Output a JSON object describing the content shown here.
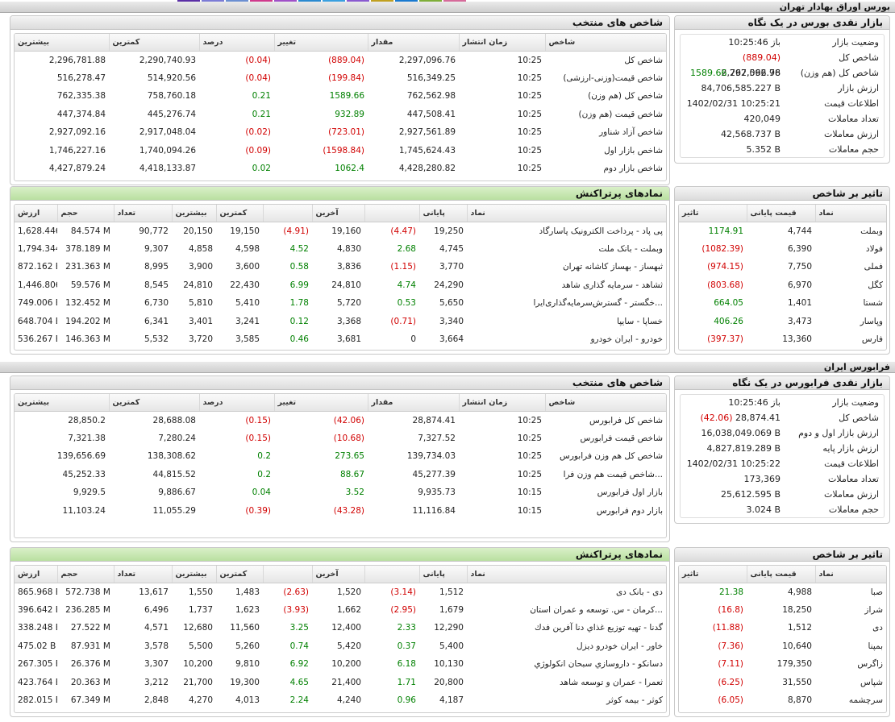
{
  "colors": {
    "negative": "#d10000",
    "positive": "#008000",
    "header_green": "#c9e8b2"
  },
  "top_strip": [
    "#5b2fa6",
    "#7b7bd6",
    "#6b8fd2",
    "#d03a8c",
    "#a050c8",
    "#2a8ad0",
    "#3aa0e0",
    "#8a5ad0",
    "#c0a020",
    "#1a7ad0",
    "#7fae3a",
    "#d66a9a"
  ],
  "tse": {
    "section_title": "بورس اوراق بهادار تهران",
    "indices": {
      "title": "شاخص های منتخب",
      "headers": [
        "شاخص",
        "زمان انتشار",
        "مقدار",
        "تغییر",
        "درصد",
        "کمترین",
        "بیشترین"
      ],
      "rows": [
        {
          "name": "شاخص کل",
          "time": "10:25",
          "value": "2,297,096.76",
          "change": "(889.04)",
          "pct": "(0.04)",
          "low": "2,290,740.93",
          "high": "2,296,781.88",
          "dir": "neg"
        },
        {
          "name": "شاخص قیمت(وزنی-ارزشی)",
          "time": "10:25",
          "value": "516,349.25",
          "change": "(199.84)",
          "pct": "(0.04)",
          "low": "514,920.56",
          "high": "516,278.47",
          "dir": "neg"
        },
        {
          "name": "شاخص کل (هم وزن)",
          "time": "10:25",
          "value": "762,562.98",
          "change": "1589.66",
          "pct": "0.21",
          "low": "758,760.18",
          "high": "762,335.38",
          "dir": "pos"
        },
        {
          "name": "شاخص قیمت (هم وزن)",
          "time": "10:25",
          "value": "447,508.41",
          "change": "932.89",
          "pct": "0.21",
          "low": "445,276.74",
          "high": "447,374.84",
          "dir": "pos"
        },
        {
          "name": "شاخص آزاد شناور",
          "time": "10:25",
          "value": "2,927,561.89",
          "change": "(723.01)",
          "pct": "(0.02)",
          "low": "2,917,048.04",
          "high": "2,927,092.16",
          "dir": "neg"
        },
        {
          "name": "شاخص بازار اول",
          "time": "10:25",
          "value": "1,745,624.43",
          "change": "(1598.84)",
          "pct": "(0.09)",
          "low": "1,740,094.26",
          "high": "1,746,227.16",
          "dir": "neg"
        },
        {
          "name": "شاخص بازار دوم",
          "time": "10:25",
          "value": "4,428,280.82",
          "change": "1062.4",
          "pct": "0.02",
          "low": "4,418,133.87",
          "high": "4,427,879.24",
          "dir": "pos"
        }
      ]
    },
    "glance": {
      "title": "بازار نقدی بورس در یک نگاه",
      "rows": [
        {
          "label": "وضعیت بازار",
          "value": "باز 10:25:46",
          "extra": "",
          "dir": ""
        },
        {
          "label": "شاخص کل",
          "value": "2,297,096.76",
          "extra": "(889.04)",
          "dir": "neg"
        },
        {
          "label": "شاخص کل (هم وزن)",
          "value": "762,562.98",
          "extra": "1589.66",
          "dir": "pos"
        },
        {
          "label": "ارزش بازار",
          "value": "84,706,585.227 B",
          "extra": "",
          "dir": ""
        },
        {
          "label": "اطلاعات قیمت",
          "value": "1402/02/31 10:25:21",
          "extra": "",
          "dir": ""
        },
        {
          "label": "تعداد معاملات",
          "value": "420,049",
          "extra": "",
          "dir": ""
        },
        {
          "label": "ارزش معاملات",
          "value": "42,568.737 B",
          "extra": "",
          "dir": ""
        },
        {
          "label": "حجم معاملات",
          "value": "5.352 B",
          "extra": "",
          "dir": ""
        }
      ]
    },
    "symbols": {
      "title": "نمادهای پرتراکنش",
      "headers": [
        "نماد",
        "پایانی",
        "",
        "آخرین",
        "",
        "کمترین",
        "بیشترین",
        "تعداد",
        "حجم",
        "ارزش"
      ],
      "rows": [
        {
          "name": "پی پاد - پرداخت الکترونیک پاسارگاد",
          "close": "19,250",
          "cchg": "(4.47)",
          "cdir": "neg",
          "last": "19,160",
          "lchg": "(4.91)",
          "ldir": "neg",
          "low": "19,150",
          "high": "20,150",
          "count": "90,772",
          "volume": "84.574 M",
          "value": "1,628.446 B"
        },
        {
          "name": "وبملت - بانک ملت",
          "close": "4,745",
          "cchg": "2.68",
          "cdir": "pos",
          "last": "4,830",
          "lchg": "4.52",
          "ldir": "pos",
          "low": "4,598",
          "high": "4,858",
          "count": "9,307",
          "volume": "378.189 M",
          "value": "1,794.344 B"
        },
        {
          "name": "ثبهساز - بهساز کاشانه تهران",
          "close": "3,770",
          "cchg": "(1.15)",
          "cdir": "neg",
          "last": "3,836",
          "lchg": "0.58",
          "ldir": "pos",
          "low": "3,600",
          "high": "3,900",
          "count": "8,995",
          "volume": "231.363 M",
          "value": "872.162 B"
        },
        {
          "name": "ثشاهد - سرمایه گذاری شاهد",
          "close": "24,290",
          "cchg": "4.74",
          "cdir": "pos",
          "last": "24,810",
          "lchg": "6.99",
          "ldir": "pos",
          "low": "22,430",
          "high": "24,810",
          "count": "8,545",
          "volume": "59.576 M",
          "value": "1,446.806 B"
        },
        {
          "name": "خگستر - گسترش‌سرمایه‌گذاری‌ایرا...",
          "close": "5,650",
          "cchg": "0.53",
          "cdir": "pos",
          "last": "5,720",
          "lchg": "1.78",
          "ldir": "pos",
          "low": "5,410",
          "high": "5,810",
          "count": "6,730",
          "volume": "132.452 M",
          "value": "749.006 B"
        },
        {
          "name": "خساپا - سایپا",
          "close": "3,340",
          "cchg": "(0.71)",
          "cdir": "neg",
          "last": "3,368",
          "lchg": "0.12",
          "ldir": "pos",
          "low": "3,241",
          "high": "3,401",
          "count": "6,341",
          "volume": "194.202 M",
          "value": "648.704 B"
        },
        {
          "name": "خودرو - ایران خودرو",
          "close": "3,664",
          "cchg": "0",
          "cdir": "",
          "last": "3,681",
          "lchg": "0.46",
          "ldir": "pos",
          "low": "3,585",
          "high": "3,720",
          "count": "5,532",
          "volume": "146.363 M",
          "value": "536.267 B"
        }
      ]
    },
    "impact": {
      "title": "تاثیر بر شاخص",
      "headers": [
        "نماد",
        "قیمت پایانی",
        "تاثیر"
      ],
      "rows": [
        {
          "name": "وبملت",
          "price": "4,744",
          "impact": "1174.91",
          "dir": "pos"
        },
        {
          "name": "فولاد",
          "price": "6,390",
          "impact": "(1082.39)",
          "dir": "neg"
        },
        {
          "name": "فملی",
          "price": "7,750",
          "impact": "(974.15)",
          "dir": "neg"
        },
        {
          "name": "کگل",
          "price": "6,970",
          "impact": "(803.68)",
          "dir": "neg"
        },
        {
          "name": "شستا",
          "price": "1,401",
          "impact": "664.05",
          "dir": "pos"
        },
        {
          "name": "وپاسار",
          "price": "3,473",
          "impact": "406.26",
          "dir": "pos"
        },
        {
          "name": "فارس",
          "price": "13,360",
          "impact": "(397.37)",
          "dir": "neg"
        }
      ]
    }
  },
  "ifb": {
    "section_title": "فرابورس ایران",
    "indices": {
      "title": "شاخص های منتخب",
      "headers": [
        "شاخص",
        "زمان انتشار",
        "مقدار",
        "تغییر",
        "درصد",
        "کمترین",
        "بیشترین"
      ],
      "rows": [
        {
          "name": "شاخص کل فرابورس",
          "time": "10:25",
          "value": "28,874.41",
          "change": "(42.06)",
          "pct": "(0.15)",
          "low": "28,688.08",
          "high": "28,850.2",
          "dir": "neg"
        },
        {
          "name": "شاخص قیمت فرابورس",
          "time": "10:25",
          "value": "7,327.52",
          "change": "(10.68)",
          "pct": "(0.15)",
          "low": "7,280.24",
          "high": "7,321.38",
          "dir": "neg"
        },
        {
          "name": "شاخص کل هم وزن فرابورس",
          "time": "10:25",
          "value": "139,734.03",
          "change": "273.65",
          "pct": "0.2",
          "low": "138,308.62",
          "high": "139,656.69",
          "dir": "pos"
        },
        {
          "name": "شاخص قیمت هم وزن فرا...",
          "time": "10:25",
          "value": "45,277.39",
          "change": "88.67",
          "pct": "0.2",
          "low": "44,815.52",
          "high": "45,252.33",
          "dir": "pos"
        },
        {
          "name": "بازار اول فرابورس",
          "time": "10:15",
          "value": "9,935.73",
          "change": "3.52",
          "pct": "0.04",
          "low": "9,886.67",
          "high": "9,929.5",
          "dir": "pos"
        },
        {
          "name": "بازار دوم فرابورس",
          "time": "10:15",
          "value": "11,116.84",
          "change": "(43.28)",
          "pct": "(0.39)",
          "low": "11,055.29",
          "high": "11,103.24",
          "dir": "neg"
        }
      ]
    },
    "glance": {
      "title": "بازار نقدی فرابورس در یک نگاه",
      "rows": [
        {
          "label": "وضعیت بازار",
          "value": "باز 10:25:46",
          "extra": "",
          "dir": ""
        },
        {
          "label": "شاخص کل",
          "value": "28,874.41",
          "extra": "(42.06)",
          "dir": "neg"
        },
        {
          "label": "ارزش بازار اول و دوم",
          "value": "16,038,049.069 B",
          "extra": "",
          "dir": ""
        },
        {
          "label": "ارزش بازار پایه",
          "value": "4,827,819.289 B",
          "extra": "",
          "dir": ""
        },
        {
          "label": "اطلاعات قیمت",
          "value": "1402/02/31 10:25:22",
          "extra": "",
          "dir": ""
        },
        {
          "label": "تعداد معاملات",
          "value": "173,369",
          "extra": "",
          "dir": ""
        },
        {
          "label": "ارزش معاملات",
          "value": "25,612.595 B",
          "extra": "",
          "dir": ""
        },
        {
          "label": "حجم معاملات",
          "value": "3.024 B",
          "extra": "",
          "dir": ""
        }
      ]
    },
    "symbols": {
      "title": "نمادهای پرتراکنش",
      "headers": [
        "نماد",
        "پایانی",
        "",
        "آخرین",
        "",
        "کمترین",
        "بیشترین",
        "تعداد",
        "حجم",
        "ارزش"
      ],
      "rows": [
        {
          "name": "دی - بانک دی",
          "close": "1,512",
          "cchg": "(3.14)",
          "cdir": "neg",
          "last": "1,520",
          "lchg": "(2.63)",
          "ldir": "neg",
          "low": "1,483",
          "high": "1,550",
          "count": "13,617",
          "volume": "572.738 M",
          "value": "865.968 B"
        },
        {
          "name": "کرمان - س. توسعه و عمران استان...",
          "close": "1,679",
          "cchg": "(2.95)",
          "cdir": "neg",
          "last": "1,662",
          "lchg": "(3.93)",
          "ldir": "neg",
          "low": "1,623",
          "high": "1,737",
          "count": "6,496",
          "volume": "236.285 M",
          "value": "396.642 B"
        },
        {
          "name": "گدنا - تهيه توزيع غذاي دنا آفرين فدك",
          "close": "12,290",
          "cchg": "2.33",
          "cdir": "pos",
          "last": "12,400",
          "lchg": "3.25",
          "ldir": "pos",
          "low": "11,560",
          "high": "12,680",
          "count": "4,571",
          "volume": "27.522 M",
          "value": "338.248 B"
        },
        {
          "name": "خاور - ایران خودرو دیزل",
          "close": "5,400",
          "cchg": "0.37",
          "cdir": "pos",
          "last": "5,420",
          "lchg": "0.74",
          "ldir": "pos",
          "low": "5,260",
          "high": "5,500",
          "count": "3,578",
          "volume": "87.931 M",
          "value": "475.02 B"
        },
        {
          "name": "دسانکو - داروسازي سبحان انکولوژي",
          "close": "10,130",
          "cchg": "6.18",
          "cdir": "pos",
          "last": "10,200",
          "lchg": "6.92",
          "ldir": "pos",
          "low": "9,810",
          "high": "10,200",
          "count": "3,307",
          "volume": "26.376 M",
          "value": "267.305 B"
        },
        {
          "name": "ثعمرا - عمران و توسعه شاهد",
          "close": "20,800",
          "cchg": "1.71",
          "cdir": "pos",
          "last": "21,400",
          "lchg": "4.65",
          "ldir": "pos",
          "low": "19,300",
          "high": "21,700",
          "count": "3,212",
          "volume": "20.363 M",
          "value": "423.764 B"
        },
        {
          "name": "کوثر - بیمه کوثر",
          "close": "4,187",
          "cchg": "0.96",
          "cdir": "pos",
          "last": "4,240",
          "lchg": "2.24",
          "ldir": "pos",
          "low": "4,013",
          "high": "4,270",
          "count": "2,848",
          "volume": "67.349 M",
          "value": "282.015 B"
        }
      ]
    },
    "impact": {
      "title": "تاثیر بر شاخص",
      "headers": [
        "نماد",
        "قیمت پایانی",
        "تاثیر"
      ],
      "rows": [
        {
          "name": "صبا",
          "price": "4,988",
          "impact": "21.38",
          "dir": "pos"
        },
        {
          "name": "شراز",
          "price": "18,250",
          "impact": "(16.8)",
          "dir": "neg"
        },
        {
          "name": "دی",
          "price": "1,512",
          "impact": "(11.88)",
          "dir": "neg"
        },
        {
          "name": "بمپنا",
          "price": "10,640",
          "impact": "(7.36)",
          "dir": "neg"
        },
        {
          "name": "زاگرس",
          "price": "179,350",
          "impact": "(7.11)",
          "dir": "neg"
        },
        {
          "name": "شپاس",
          "price": "31,550",
          "impact": "(6.25)",
          "dir": "neg"
        },
        {
          "name": "سرچشمه",
          "price": "8,870",
          "impact": "(6.05)",
          "dir": "neg"
        }
      ]
    }
  }
}
